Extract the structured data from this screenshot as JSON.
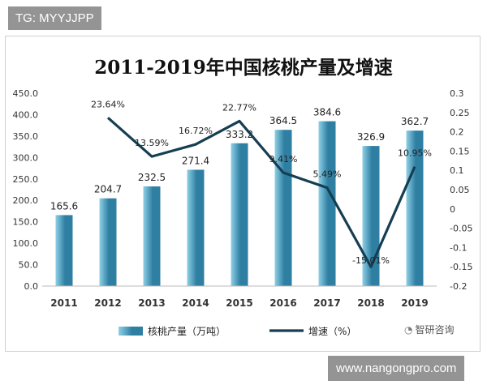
{
  "watermarks": {
    "top_left": "TG: MYYJJPP",
    "bottom_right": "www.nangongpro.com"
  },
  "brand": {
    "text": "智研咨询",
    "icon": "wechat-icon"
  },
  "colors": {
    "bar_light": "#8fd0e6",
    "bar_dark": "#2f7fa3",
    "line": "#163e52",
    "axis_text": "#333333"
  },
  "chart_data": {
    "type": "bar",
    "title": "2011-2019年中国核桃产量及增速",
    "categories": [
      "2011",
      "2012",
      "2013",
      "2014",
      "2015",
      "2016",
      "2017",
      "2018",
      "2019"
    ],
    "series": [
      {
        "name": "核桃产量（万吨）",
        "type": "bar",
        "axis": "left",
        "values": [
          165.6,
          204.7,
          232.5,
          271.4,
          333.2,
          364.5,
          384.6,
          326.9,
          362.7
        ],
        "labels": [
          "165.6",
          "204.7",
          "232.5",
          "271.4",
          "333.2",
          "364.5",
          "384.6",
          "326.9",
          "362.7"
        ]
      },
      {
        "name": "增速（%）",
        "type": "line",
        "axis": "right",
        "values": [
          null,
          0.2364,
          0.1359,
          0.1672,
          0.2277,
          0.0941,
          0.0549,
          -0.1501,
          0.1095
        ],
        "labels": [
          "",
          "23.64%",
          "13.59%",
          "16.72%",
          "22.77%",
          "9.41%",
          "5.49%",
          "-15.01%",
          "10.95%"
        ]
      }
    ],
    "y_left": {
      "ylim": [
        0,
        450
      ],
      "ticks": [
        "0.0",
        "50.0",
        "100.0",
        "150.0",
        "200.0",
        "250.0",
        "300.0",
        "350.0",
        "400.0",
        "450.0"
      ],
      "tick_values": [
        0,
        50,
        100,
        150,
        200,
        250,
        300,
        350,
        400,
        450
      ]
    },
    "y_right": {
      "ylim": [
        -0.2,
        0.3
      ],
      "ticks": [
        "-0.2",
        "-0.15",
        "-0.1",
        "-0.05",
        "0",
        "0.05",
        "0.1",
        "0.15",
        "0.2",
        "0.25",
        "0.3"
      ],
      "tick_values": [
        -0.2,
        -0.15,
        -0.1,
        -0.05,
        0,
        0.05,
        0.1,
        0.15,
        0.2,
        0.25,
        0.3
      ]
    },
    "grid": false,
    "legend_position": "bottom"
  }
}
